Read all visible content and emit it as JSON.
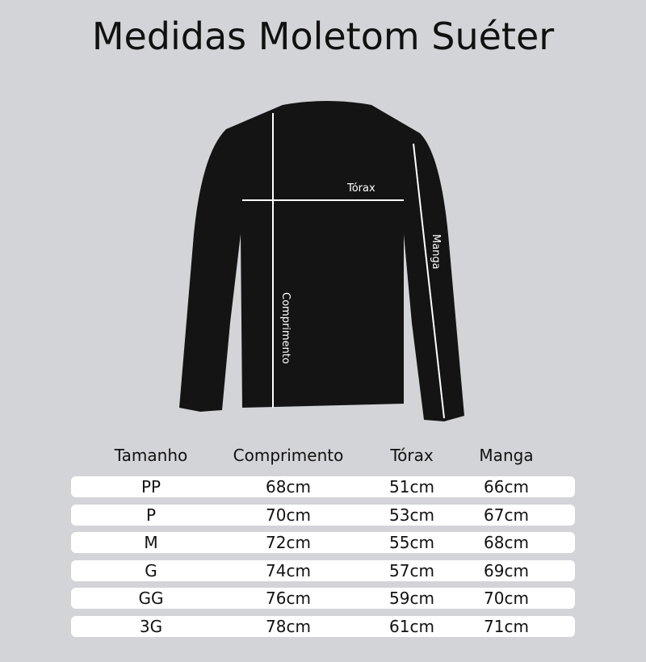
{
  "title": "Medidas Moletom Suéter",
  "labels": {
    "chest": "Tórax",
    "sleeve": "Manga",
    "length": "Comprimento"
  },
  "table": {
    "headers": [
      "Tamanho",
      "Comprimento",
      "Tórax",
      "Manga"
    ],
    "rows": [
      [
        "PP",
        "68cm",
        "51cm",
        "66cm"
      ],
      [
        "P",
        "70cm",
        "53cm",
        "67cm"
      ],
      [
        "M",
        "72cm",
        "55cm",
        "68cm"
      ],
      [
        "G",
        "74cm",
        "57cm",
        "69cm"
      ],
      [
        "GG",
        "76cm",
        "59cm",
        "70cm"
      ],
      [
        "3G",
        "78cm",
        "61cm",
        "71cm"
      ]
    ]
  }
}
